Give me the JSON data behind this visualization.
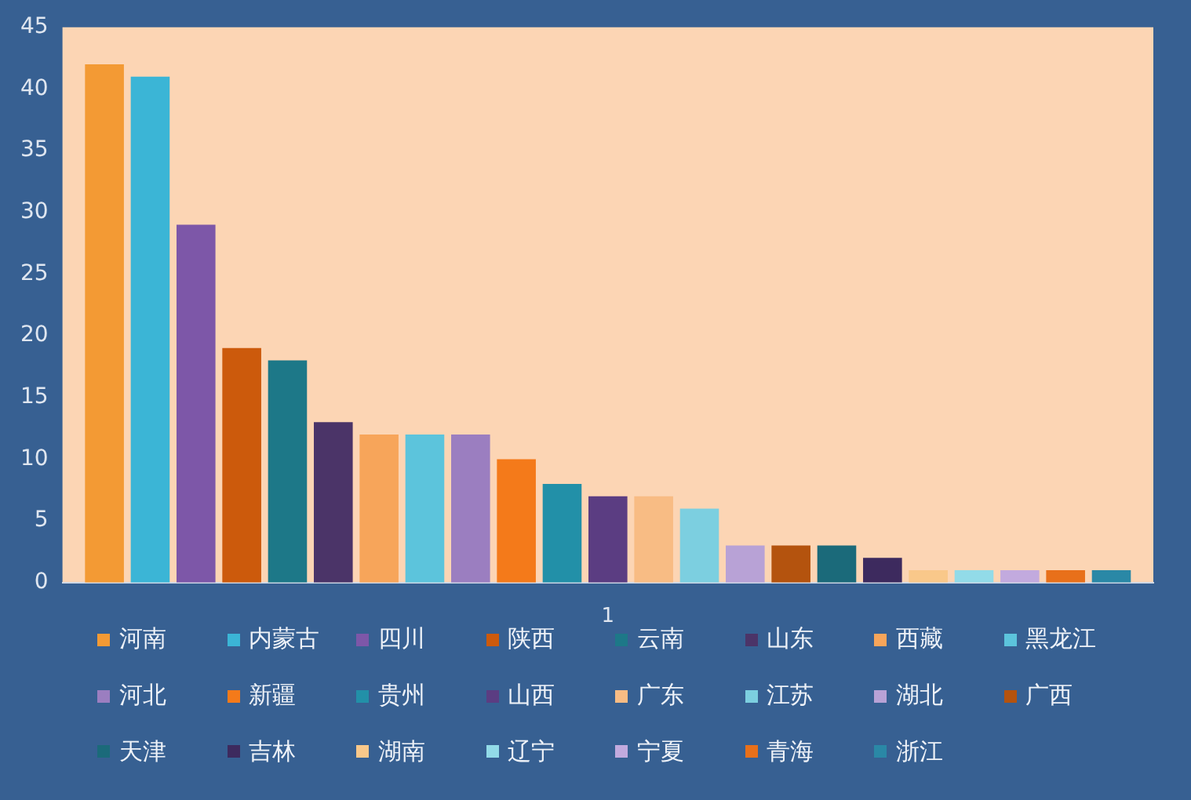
{
  "chart_data": {
    "type": "bar",
    "categories": [
      "1"
    ],
    "series": [
      {
        "name": "河南",
        "color": "#f39a34",
        "values": [
          42
        ]
      },
      {
        "name": "内蒙古",
        "color": "#3bb5d6",
        "values": [
          41
        ]
      },
      {
        "name": "四川",
        "color": "#7d57a8",
        "values": [
          29
        ]
      },
      {
        "name": "陕西",
        "color": "#cc5a0c",
        "values": [
          19
        ]
      },
      {
        "name": "云南",
        "color": "#1d7888",
        "values": [
          18
        ]
      },
      {
        "name": "山东",
        "color": "#4b3468",
        "values": [
          13
        ]
      },
      {
        "name": "西藏",
        "color": "#f7a55a",
        "values": [
          12
        ]
      },
      {
        "name": "黑龙江",
        "color": "#5cc4dc",
        "values": [
          12
        ]
      },
      {
        "name": "河北",
        "color": "#9b7ec0",
        "values": [
          12
        ]
      },
      {
        "name": "新疆",
        "color": "#f47a1a",
        "values": [
          10
        ]
      },
      {
        "name": "贵州",
        "color": "#2290a8",
        "values": [
          8
        ]
      },
      {
        "name": "山西",
        "color": "#5b3d82",
        "values": [
          7
        ]
      },
      {
        "name": "广东",
        "color": "#f8bc84",
        "values": [
          7
        ]
      },
      {
        "name": "江苏",
        "color": "#7ccfe0",
        "values": [
          6
        ]
      },
      {
        "name": "湖北",
        "color": "#b8a2d6",
        "values": [
          3
        ]
      },
      {
        "name": "广西",
        "color": "#b4530e",
        "values": [
          3
        ]
      },
      {
        "name": "天津",
        "color": "#1b6a7a",
        "values": [
          3
        ]
      },
      {
        "name": "吉林",
        "color": "#3d2a5e",
        "values": [
          2
        ]
      },
      {
        "name": "湖南",
        "color": "#f9c88a",
        "values": [
          1
        ]
      },
      {
        "name": "辽宁",
        "color": "#92dbe8",
        "values": [
          1
        ]
      },
      {
        "name": "宁夏",
        "color": "#c2aade",
        "values": [
          1
        ]
      },
      {
        "name": "青海",
        "color": "#e8701a",
        "values": [
          1
        ]
      },
      {
        "name": "浙江",
        "color": "#2a88a6",
        "values": [
          1
        ]
      }
    ],
    "ylim": [
      0,
      45
    ],
    "yticks": [
      0,
      5,
      10,
      15,
      20,
      25,
      30,
      35,
      40,
      45
    ],
    "legend": "bottom"
  }
}
